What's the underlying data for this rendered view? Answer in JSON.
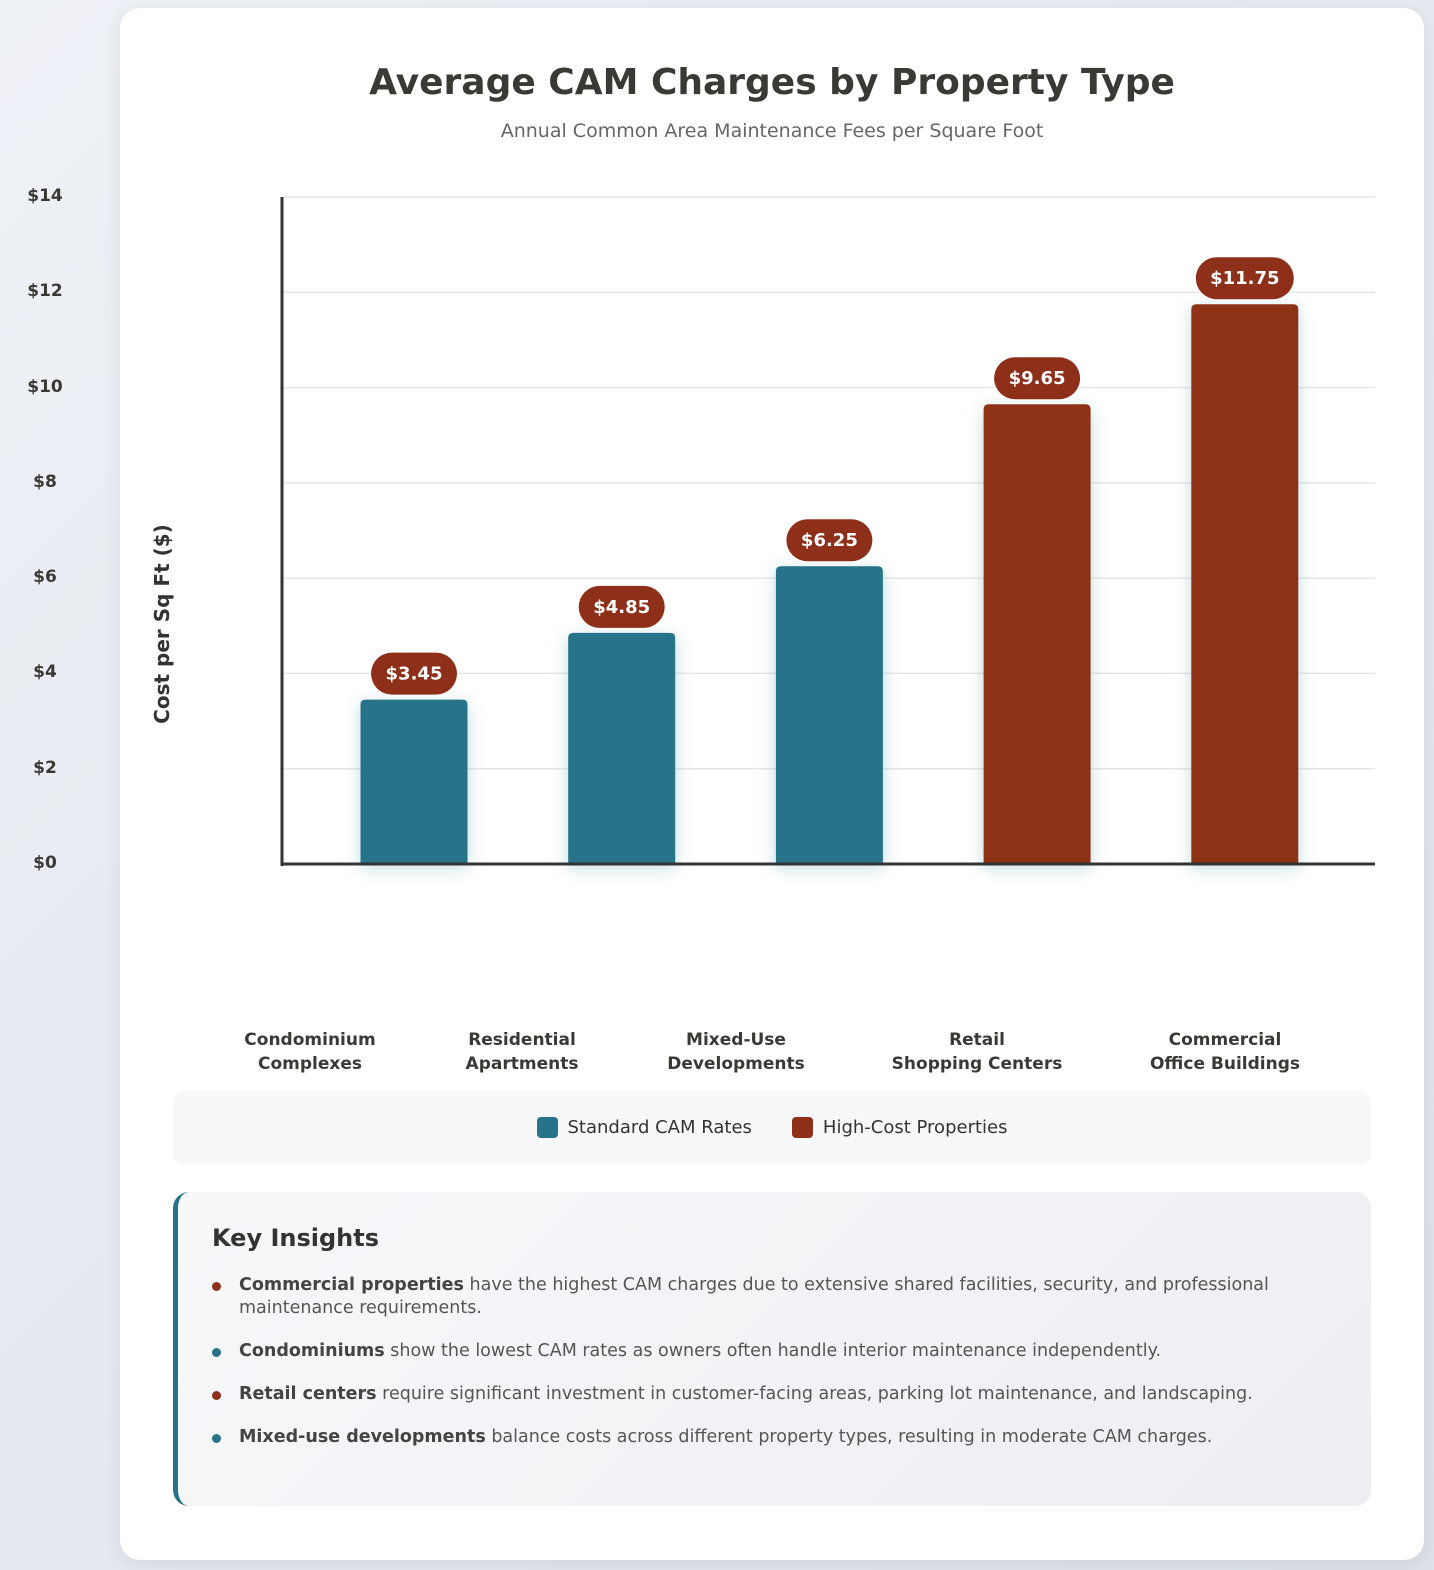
{
  "chart_data": {
    "type": "bar",
    "title": "Average CAM Charges by Property Type",
    "subtitle": "Annual Common Area Maintenance Fees per Square Foot",
    "ylabel": "Cost per Sq Ft ($)",
    "xlabel": "",
    "ylim": [
      0,
      14
    ],
    "yticks": [
      "$0",
      "$2",
      "$4",
      "$6",
      "$8",
      "$10",
      "$12",
      "$14"
    ],
    "grid": true,
    "categories": [
      [
        "Condominium",
        "Complexes"
      ],
      [
        "Residential",
        "Apartments"
      ],
      [
        "Mixed-Use",
        "Developments"
      ],
      [
        "Retail",
        "Shopping Centers"
      ],
      [
        "Commercial",
        "Office Buildings"
      ]
    ],
    "values": [
      3.45,
      4.85,
      6.25,
      9.65,
      11.75
    ],
    "data_labels": [
      "$3.45",
      "$4.85",
      "$6.25",
      "$9.65",
      "$11.75"
    ],
    "groups": [
      "standard",
      "standard",
      "standard",
      "high",
      "high"
    ],
    "legend": [
      {
        "key": "standard",
        "name": "Standard CAM Rates",
        "color": "#27738a"
      },
      {
        "key": "high",
        "name": "High-Cost Properties",
        "color": "#8e3019"
      }
    ],
    "legend_placement": "bottom",
    "label_color": "#8e3019"
  },
  "insights": {
    "title": "Key Insights",
    "items": [
      {
        "bold": "Commercial properties",
        "text": " have the highest CAM charges due to extensive shared facilities, security, and professional maintenance requirements.",
        "color": "#8e3019"
      },
      {
        "bold": "Condominiums",
        "text": " show the lowest CAM rates as owners often handle interior maintenance independently.",
        "color": "#27738a"
      },
      {
        "bold": "Retail centers",
        "text": " require significant investment in customer-facing areas, parking lot maintenance, and landscaping.",
        "color": "#8e3019"
      },
      {
        "bold": "Mixed-use developments",
        "text": " balance costs across different property types, resulting in moderate CAM charges.",
        "color": "#27738a"
      }
    ]
  }
}
